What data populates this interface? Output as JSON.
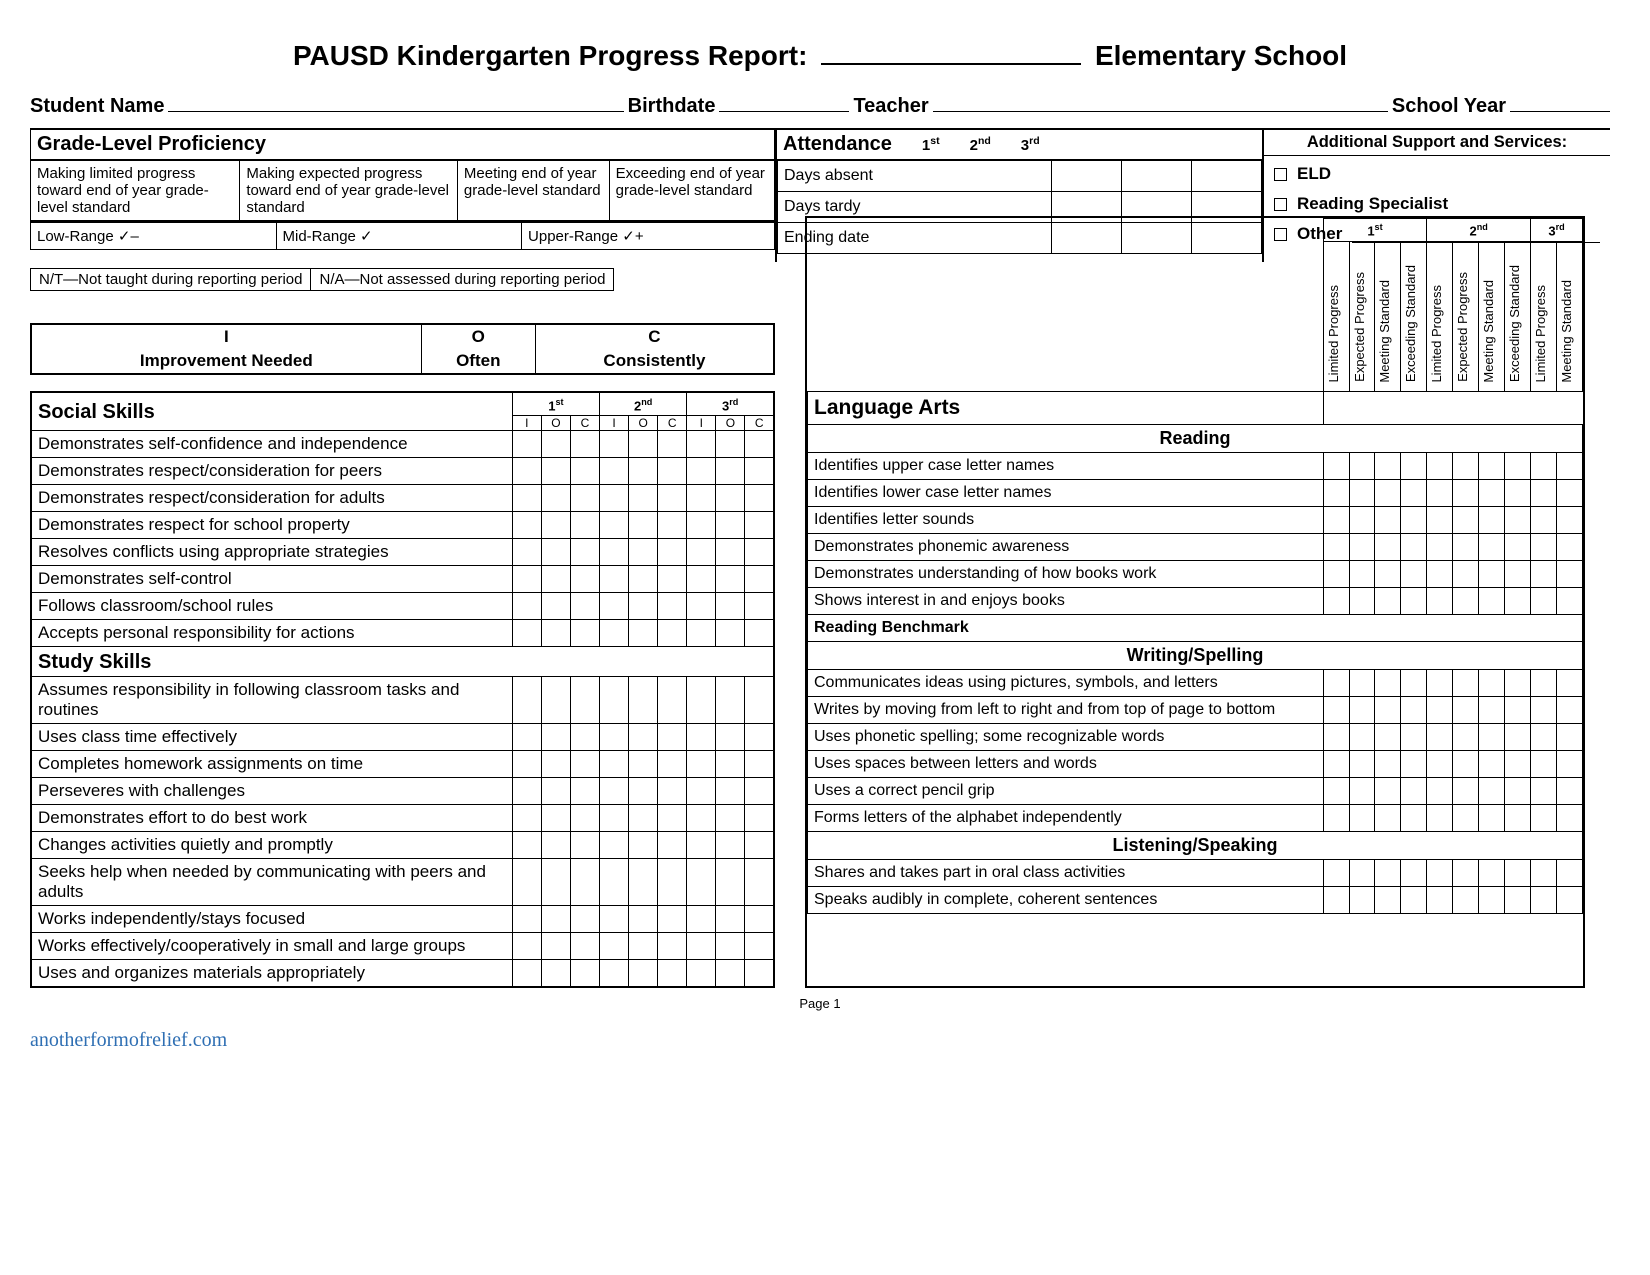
{
  "title": {
    "prefix": "PAUSD Kindergarten Progress Report:",
    "suffix": "Elementary School"
  },
  "info": {
    "student": "Student Name",
    "birthdate": "Birthdate",
    "teacher": "Teacher",
    "year": "School Year"
  },
  "glp": {
    "heading": "Grade-Level Proficiency",
    "cells": [
      "Making limited progress toward end of year grade-level standard",
      "Making expected progress toward end of year grade-level standard",
      "Meeting end of year grade-level standard",
      "Exceeding end of year grade-level standard"
    ],
    "ranges": [
      "Low-Range  ✓–",
      "Mid-Range  ✓",
      "Upper-Range  ✓+"
    ]
  },
  "attendance": {
    "heading": "Attendance",
    "terms": [
      "1",
      "2",
      "3"
    ],
    "rows": [
      "Days absent",
      "Days tardy",
      "Ending date"
    ]
  },
  "support": {
    "heading": "Additional Support and Services:",
    "items": [
      "ELD",
      "Reading Specialist",
      "Other"
    ]
  },
  "legend": {
    "nt": "N/T—Not taught during reporting period",
    "na": "N/A—Not assessed during reporting period"
  },
  "ioc": {
    "I": "Improvement Needed",
    "O": "Often",
    "C": "Consistently"
  },
  "terms_ioc": [
    "1",
    "2",
    "3"
  ],
  "ioc_cols": [
    "I",
    "O",
    "C"
  ],
  "social_skills": {
    "title": "Social Skills",
    "items": [
      "Demonstrates self-confidence and independence",
      "Demonstrates respect/consideration for peers",
      "Demonstrates respect/consideration for adults",
      "Demonstrates respect for school property",
      "Resolves conflicts using appropriate strategies",
      "Demonstrates self-control",
      "Follows classroom/school rules",
      "Accepts personal responsibility for actions"
    ]
  },
  "study_skills": {
    "title": "Study Skills",
    "items": [
      "Assumes responsibility in following classroom tasks and routines",
      "Uses class time effectively",
      "Completes homework assignments on time",
      "Perseveres with challenges",
      "Demonstrates effort to do best work",
      "Changes activities quietly and promptly",
      "Seeks help when needed by communicating with peers and adults",
      "Works independently/stays focused",
      "Works effectively/cooperatively in small and large groups",
      "Uses and organizes materials appropriately"
    ]
  },
  "la": {
    "title": "Language Arts",
    "vheads": [
      "Limited Progress",
      "Expected Progress",
      "Meeting Standard",
      "Exceeding Standard"
    ],
    "sections": [
      {
        "heading": "Reading",
        "items": [
          "Identifies upper case letter names",
          "Identifies lower case letter names",
          "Identifies letter sounds",
          "Demonstrates phonemic awareness",
          "Demonstrates understanding of how books work",
          "Shows interest in and enjoys books"
        ],
        "benchmark": "Reading Benchmark"
      },
      {
        "heading": "Writing/Spelling",
        "items": [
          "Communicates ideas using pictures, symbols, and letters",
          "Writes by moving from left to right and from top of page to bottom",
          "Uses phonetic spelling; some recognizable words",
          "Uses spaces between letters and words",
          "Uses a correct pencil grip",
          "Forms letters of the alphabet independently"
        ]
      },
      {
        "heading": "Listening/Speaking",
        "items": [
          "Shares and takes part in oral class activities",
          "Speaks audibly in complete, coherent sentences"
        ]
      }
    ]
  },
  "page": "Page 1",
  "watermark": "anotherformofrelief.com"
}
